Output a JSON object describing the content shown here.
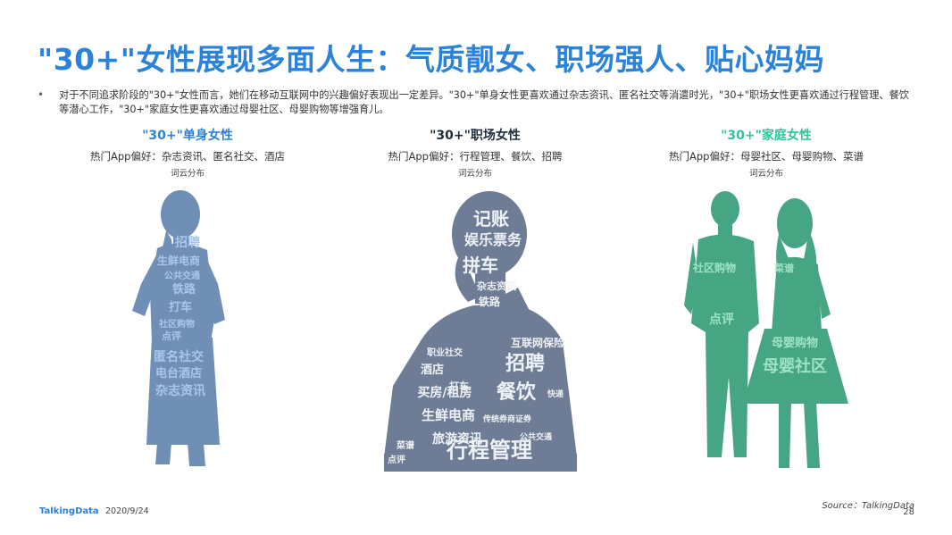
{
  "title": "\"30+\"女性展现多面人生：气质靓女、职场强人、贴心妈妈",
  "bullet": "对于不同追求阶段的\"30+\"女性而言，她们在移动互联网中的兴趣偏好表现出一定差异。\"30+\"单身女性更喜欢通过杂志资讯、匿名社交等消遣时光，\"30+\"职场女性更喜欢通过行程管理、餐饮等潜心工作，\"30+\"家庭女性更喜欢通过母婴社区、母婴购物等增强育儿。",
  "columns": [
    {
      "title": "\"30+\"单身女性",
      "title_color": "#2b82d9",
      "pref": "热门App偏好：杂志资讯、匿名社交、酒店",
      "sub": "词云分布",
      "fill": "#6f8fb5",
      "word_color": "#a9c6ea",
      "words": [
        "招聘",
        "生鲜电商",
        "公共交通",
        "铁路",
        "打车",
        "社区购物",
        "点评",
        "匿名社交",
        "电台酒店",
        "杂志资讯"
      ]
    },
    {
      "title": "\"30+\"职场女性",
      "title_color": "#1f2d3d",
      "pref": "热门App偏好：行程管理、餐饮、招聘",
      "sub": "词云分布",
      "fill": "#6e7d95",
      "word_color": "#eef1f5",
      "words": [
        "记账",
        "娱乐票务",
        "拼车",
        "杂志资讯",
        "铁路",
        "互联网保险",
        "招聘",
        "职业社交",
        "酒店",
        "打车",
        "买房/租房",
        "餐饮",
        "快递",
        "生鲜电商",
        "旅游资讯",
        "传统券商证券",
        "公共交通",
        "菜谱",
        "点评",
        "行程管理"
      ]
    },
    {
      "title": "\"30+\"家庭女性",
      "title_color": "#2fc49a",
      "pref": "热门App偏好：母婴社区、母婴购物、菜谱",
      "sub": "词云分布",
      "fill": "#46a582",
      "word_color": "#9de3c7",
      "words": [
        "社区购物",
        "菜谱",
        "点评",
        "母婴购物",
        "母婴社区"
      ]
    }
  ],
  "footer": {
    "logo": "TalkingData",
    "date": "2020/9/24",
    "source": "Source：TalkingData",
    "page": "28"
  }
}
